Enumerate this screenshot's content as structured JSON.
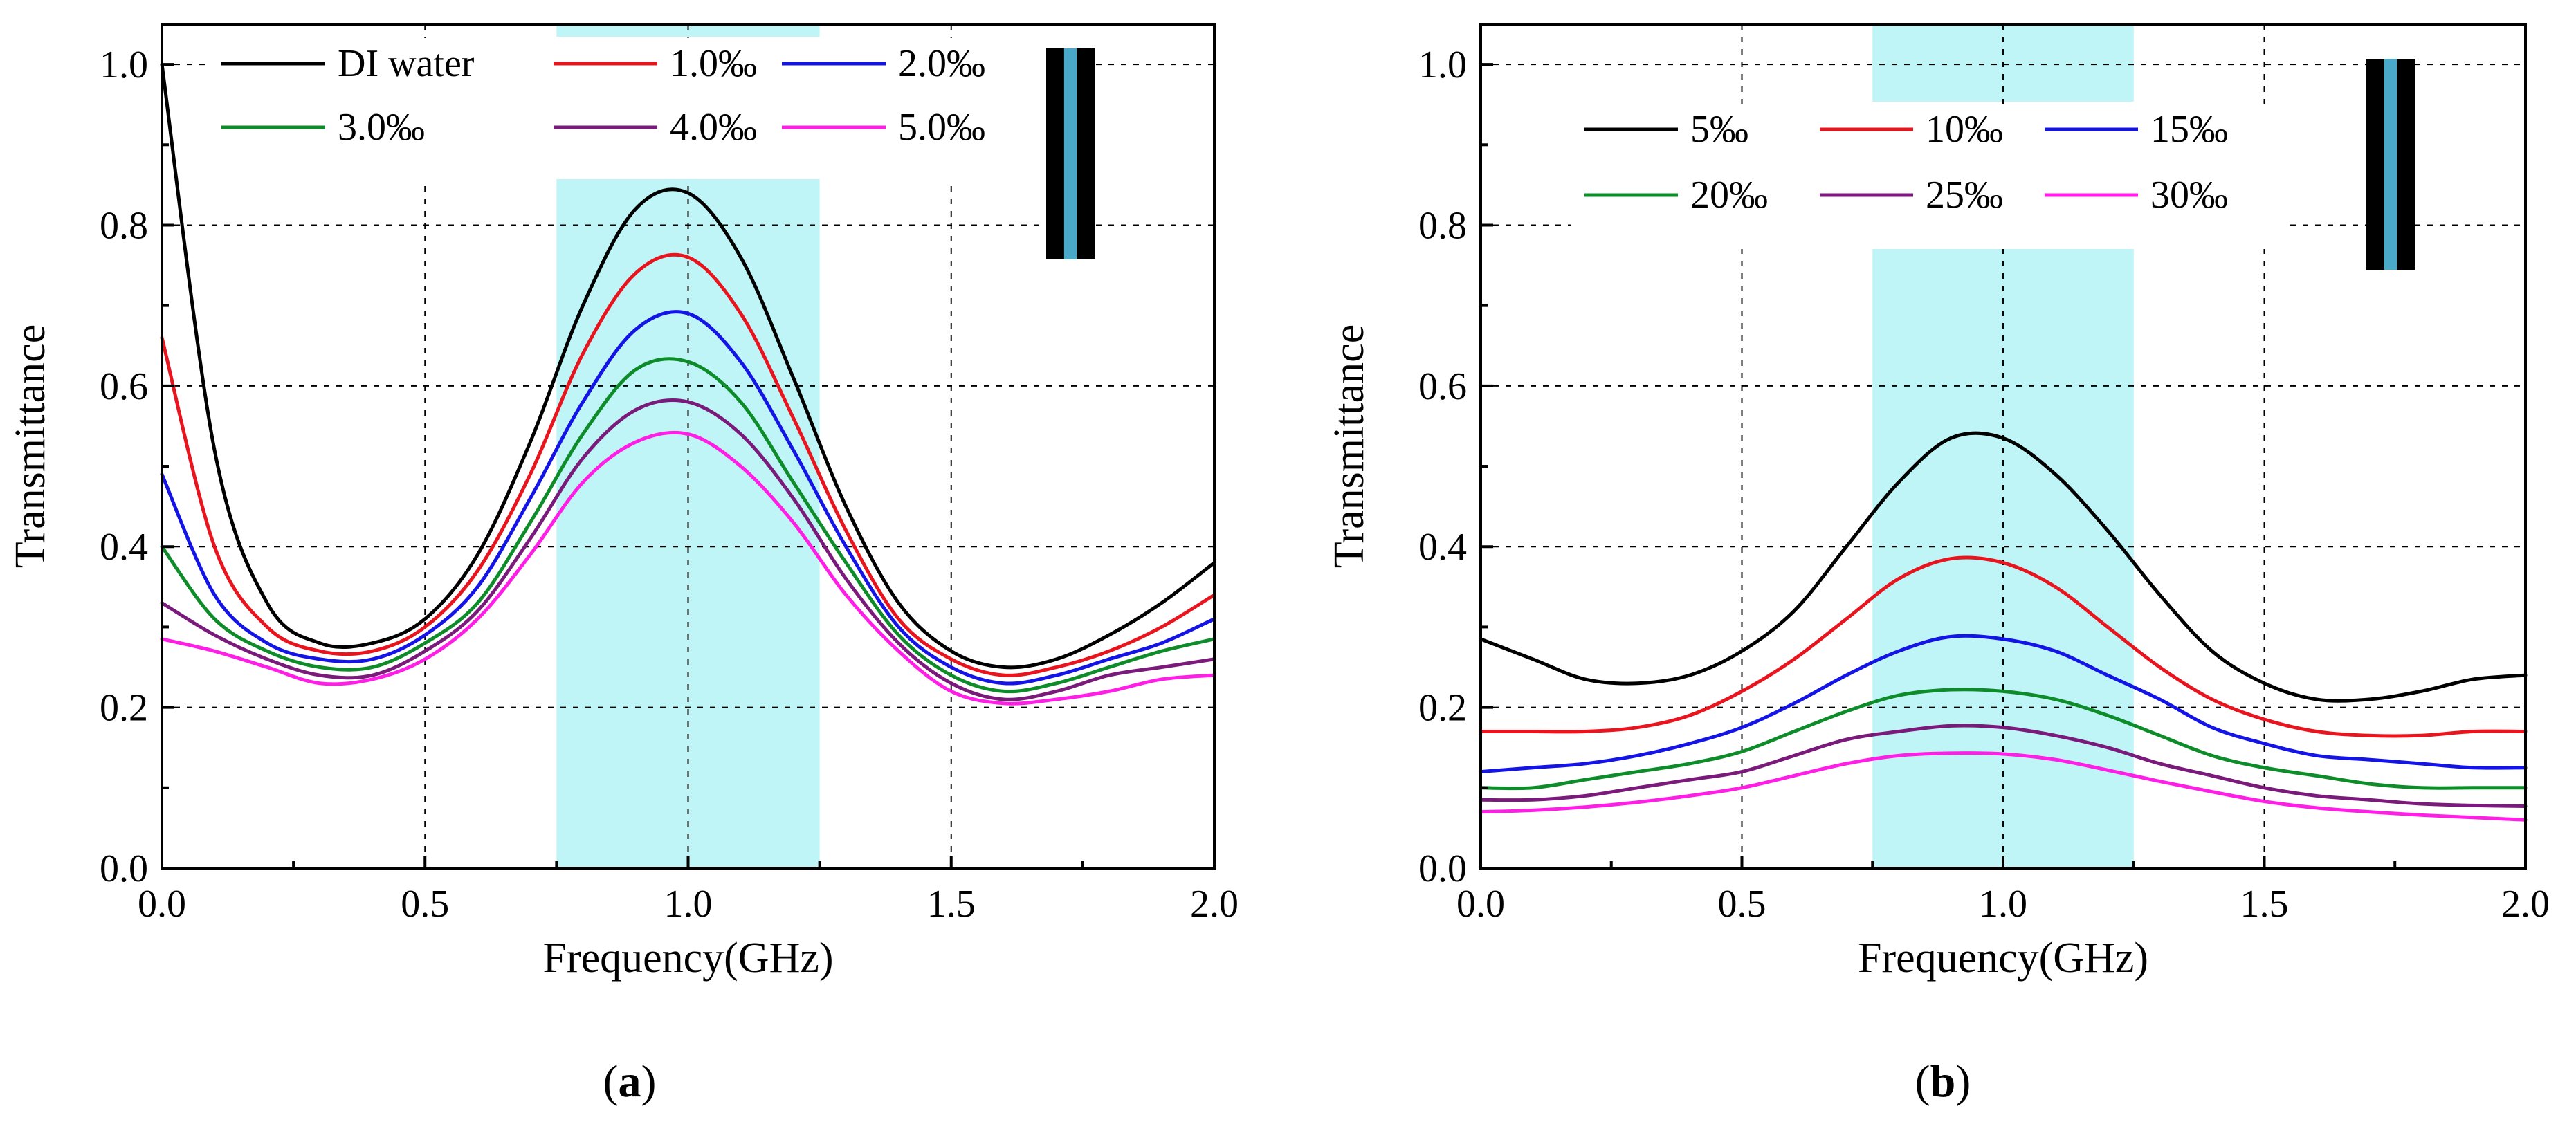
{
  "colors": {
    "highlight_band": "#bff5f7",
    "inset_bar": "#000000",
    "inset_stripe": "#4aa8c8"
  },
  "chart_data": [
    {
      "type": "line",
      "caption_letter": "a",
      "xlabel": "Frequency(GHz)",
      "ylabel": "Transmittance",
      "xlim": [
        0,
        2
      ],
      "ylim": [
        0,
        1.0
      ],
      "xticks": [
        "0.0",
        "0.5",
        "1.0",
        "1.5",
        "2.0"
      ],
      "yticks": [
        "0.0",
        "0.2",
        "0.4",
        "0.6",
        "0.8",
        "1.0"
      ],
      "grid": true,
      "legend_position": "top-left",
      "highlight_band": [
        0.75,
        1.25
      ],
      "x": [
        0.0,
        0.1,
        0.2,
        0.3,
        0.4,
        0.5,
        0.6,
        0.7,
        0.8,
        0.9,
        1.0,
        1.1,
        1.2,
        1.3,
        1.4,
        1.5,
        1.6,
        1.7,
        1.8,
        1.9,
        2.0
      ],
      "series": [
        {
          "name": "DI water",
          "color": "#000000",
          "values": [
            1.0,
            0.52,
            0.33,
            0.28,
            0.28,
            0.31,
            0.39,
            0.53,
            0.7,
            0.82,
            0.84,
            0.76,
            0.61,
            0.45,
            0.33,
            0.27,
            0.25,
            0.26,
            0.29,
            0.33,
            0.38
          ]
        },
        {
          "name": "1.0‰",
          "color": "#e8141e",
          "values": [
            0.66,
            0.4,
            0.3,
            0.27,
            0.27,
            0.3,
            0.37,
            0.49,
            0.64,
            0.74,
            0.76,
            0.69,
            0.56,
            0.42,
            0.31,
            0.26,
            0.24,
            0.25,
            0.27,
            0.3,
            0.34
          ]
        },
        {
          "name": "2.0‰",
          "color": "#1414e6",
          "values": [
            0.49,
            0.34,
            0.28,
            0.26,
            0.26,
            0.29,
            0.35,
            0.46,
            0.58,
            0.67,
            0.69,
            0.63,
            0.52,
            0.4,
            0.3,
            0.25,
            0.23,
            0.24,
            0.26,
            0.28,
            0.31
          ]
        },
        {
          "name": "3.0‰",
          "color": "#0e8c2a",
          "values": [
            0.4,
            0.31,
            0.27,
            0.25,
            0.25,
            0.28,
            0.33,
            0.43,
            0.54,
            0.62,
            0.63,
            0.58,
            0.48,
            0.38,
            0.29,
            0.24,
            0.22,
            0.23,
            0.25,
            0.27,
            0.285
          ]
        },
        {
          "name": "4.0‰",
          "color": "#7a1a7a",
          "values": [
            0.33,
            0.29,
            0.26,
            0.24,
            0.24,
            0.27,
            0.32,
            0.41,
            0.51,
            0.57,
            0.58,
            0.54,
            0.46,
            0.36,
            0.28,
            0.23,
            0.21,
            0.22,
            0.24,
            0.25,
            0.26
          ]
        },
        {
          "name": "5.0‰",
          "color": "#ff1ee6",
          "values": [
            0.285,
            0.27,
            0.25,
            0.23,
            0.235,
            0.26,
            0.31,
            0.39,
            0.48,
            0.53,
            0.54,
            0.5,
            0.43,
            0.34,
            0.27,
            0.22,
            0.205,
            0.21,
            0.22,
            0.235,
            0.24
          ]
        }
      ]
    },
    {
      "type": "line",
      "caption_letter": "b",
      "xlabel": "Frequency(GHz)",
      "ylabel": "Transmittance",
      "xlim": [
        0,
        2
      ],
      "ylim": [
        0,
        1.0
      ],
      "xticks": [
        "0.0",
        "0.5",
        "1.0",
        "1.5",
        "2.0"
      ],
      "yticks": [
        "0.0",
        "0.2",
        "0.4",
        "0.6",
        "0.8",
        "1.0"
      ],
      "grid": true,
      "legend_position": "top-left",
      "highlight_band": [
        0.75,
        1.25
      ],
      "x": [
        0.0,
        0.1,
        0.2,
        0.3,
        0.4,
        0.5,
        0.6,
        0.7,
        0.8,
        0.9,
        1.0,
        1.1,
        1.2,
        1.3,
        1.4,
        1.5,
        1.6,
        1.7,
        1.8,
        1.9,
        2.0
      ],
      "series": [
        {
          "name": "5‰",
          "color": "#000000",
          "values": [
            0.285,
            0.26,
            0.235,
            0.23,
            0.24,
            0.27,
            0.32,
            0.4,
            0.48,
            0.535,
            0.535,
            0.49,
            0.42,
            0.34,
            0.27,
            0.23,
            0.21,
            0.21,
            0.22,
            0.235,
            0.24
          ]
        },
        {
          "name": "10‰",
          "color": "#e8141e",
          "values": [
            0.17,
            0.17,
            0.17,
            0.175,
            0.19,
            0.22,
            0.26,
            0.31,
            0.36,
            0.385,
            0.38,
            0.35,
            0.3,
            0.25,
            0.21,
            0.185,
            0.17,
            0.165,
            0.165,
            0.17,
            0.17
          ]
        },
        {
          "name": "15‰",
          "color": "#1414e6",
          "values": [
            0.12,
            0.125,
            0.13,
            0.14,
            0.155,
            0.175,
            0.205,
            0.24,
            0.27,
            0.288,
            0.285,
            0.27,
            0.24,
            0.21,
            0.175,
            0.155,
            0.14,
            0.135,
            0.13,
            0.125,
            0.125
          ]
        },
        {
          "name": "20‰",
          "color": "#0e8c2a",
          "values": [
            0.1,
            0.1,
            0.11,
            0.12,
            0.13,
            0.145,
            0.17,
            0.195,
            0.215,
            0.222,
            0.22,
            0.21,
            0.19,
            0.165,
            0.14,
            0.125,
            0.115,
            0.105,
            0.1,
            0.1,
            0.1
          ]
        },
        {
          "name": "25‰",
          "color": "#7a1a7a",
          "values": [
            0.085,
            0.085,
            0.09,
            0.1,
            0.11,
            0.12,
            0.14,
            0.16,
            0.17,
            0.177,
            0.175,
            0.165,
            0.15,
            0.13,
            0.115,
            0.1,
            0.09,
            0.085,
            0.08,
            0.078,
            0.077
          ]
        },
        {
          "name": "30‰",
          "color": "#ff1ee6",
          "values": [
            0.07,
            0.072,
            0.076,
            0.082,
            0.09,
            0.1,
            0.115,
            0.13,
            0.14,
            0.143,
            0.142,
            0.135,
            0.122,
            0.108,
            0.095,
            0.083,
            0.075,
            0.07,
            0.066,
            0.063,
            0.06
          ]
        }
      ]
    }
  ]
}
